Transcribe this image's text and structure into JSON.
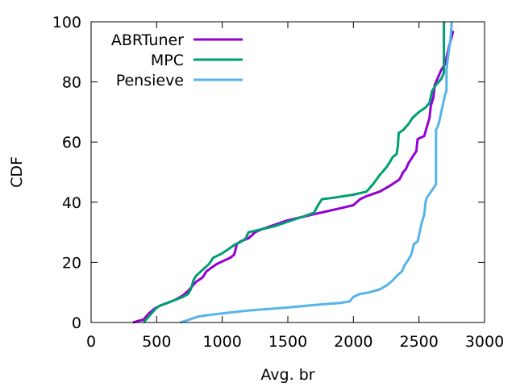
{
  "chart_data": {
    "type": "line",
    "xlabel": "Avg. br",
    "ylabel": "CDF",
    "xlim": [
      0,
      3000
    ],
    "ylim": [
      0,
      100
    ],
    "xticks": [
      0,
      500,
      1000,
      1500,
      2000,
      2500,
      3000
    ],
    "yticks": [
      0,
      20,
      40,
      60,
      80,
      100
    ],
    "legend_position": "top-left",
    "series": [
      {
        "name": "ABRTuner",
        "color": "#9400d3",
        "points": [
          [
            320,
            0
          ],
          [
            360,
            0.5
          ],
          [
            400,
            1
          ],
          [
            420,
            2
          ],
          [
            440,
            3
          ],
          [
            480,
            4.5
          ],
          [
            520,
            5.5
          ],
          [
            580,
            6.5
          ],
          [
            640,
            7.5
          ],
          [
            700,
            9
          ],
          [
            740,
            10.5
          ],
          [
            770,
            12
          ],
          [
            800,
            13.5
          ],
          [
            850,
            15
          ],
          [
            880,
            17
          ],
          [
            910,
            18
          ],
          [
            960,
            19.5
          ],
          [
            1010,
            20.5
          ],
          [
            1060,
            21.5
          ],
          [
            1090,
            22.5
          ],
          [
            1100,
            24
          ],
          [
            1110,
            26
          ],
          [
            1140,
            27
          ],
          [
            1200,
            28
          ],
          [
            1250,
            30
          ],
          [
            1300,
            31
          ],
          [
            1400,
            32.5
          ],
          [
            1500,
            34
          ],
          [
            1600,
            35
          ],
          [
            1700,
            36
          ],
          [
            1800,
            37
          ],
          [
            1900,
            38
          ],
          [
            2000,
            39
          ],
          [
            2050,
            41
          ],
          [
            2100,
            42
          ],
          [
            2200,
            43.5
          ],
          [
            2280,
            45.5
          ],
          [
            2350,
            47.5
          ],
          [
            2380,
            50
          ],
          [
            2400,
            51
          ],
          [
            2420,
            53
          ],
          [
            2450,
            55
          ],
          [
            2480,
            57
          ],
          [
            2490,
            61
          ],
          [
            2540,
            62
          ],
          [
            2560,
            65
          ],
          [
            2580,
            68
          ],
          [
            2590,
            72
          ],
          [
            2610,
            75
          ],
          [
            2620,
            79
          ],
          [
            2650,
            82
          ],
          [
            2670,
            84
          ],
          [
            2700,
            86
          ],
          [
            2710,
            88
          ],
          [
            2720,
            90
          ],
          [
            2730,
            92
          ],
          [
            2750,
            95
          ],
          [
            2760,
            97
          ]
        ]
      },
      {
        "name": "MPC",
        "color": "#009e73",
        "points": [
          [
            400,
            0
          ],
          [
            420,
            1
          ],
          [
            440,
            2
          ],
          [
            460,
            3
          ],
          [
            490,
            4.5
          ],
          [
            520,
            5.5
          ],
          [
            580,
            6.5
          ],
          [
            640,
            7.5
          ],
          [
            700,
            8.5
          ],
          [
            740,
            9.5
          ],
          [
            760,
            11
          ],
          [
            770,
            12.5
          ],
          [
            780,
            14
          ],
          [
            800,
            15.5
          ],
          [
            850,
            17.5
          ],
          [
            900,
            19.5
          ],
          [
            930,
            21.5
          ],
          [
            1000,
            23
          ],
          [
            1050,
            24.5
          ],
          [
            1100,
            26
          ],
          [
            1150,
            27
          ],
          [
            1180,
            28
          ],
          [
            1200,
            30
          ],
          [
            1300,
            31
          ],
          [
            1400,
            32
          ],
          [
            1500,
            33.5
          ],
          [
            1600,
            35
          ],
          [
            1700,
            36.5
          ],
          [
            1730,
            39
          ],
          [
            1760,
            41
          ],
          [
            1850,
            41.5
          ],
          [
            2000,
            42.5
          ],
          [
            2100,
            43.5
          ],
          [
            2150,
            46
          ],
          [
            2200,
            49
          ],
          [
            2250,
            51.5
          ],
          [
            2280,
            53.5
          ],
          [
            2300,
            55
          ],
          [
            2330,
            56
          ],
          [
            2340,
            59
          ],
          [
            2345,
            63
          ],
          [
            2380,
            64
          ],
          [
            2420,
            66
          ],
          [
            2450,
            68
          ],
          [
            2500,
            70
          ],
          [
            2550,
            71.5
          ],
          [
            2580,
            73
          ],
          [
            2590,
            75
          ],
          [
            2600,
            77
          ],
          [
            2630,
            79
          ],
          [
            2650,
            80
          ],
          [
            2670,
            81
          ],
          [
            2690,
            83
          ],
          [
            2690,
            100
          ]
        ]
      },
      {
        "name": "Pensieve",
        "color": "#56b4e9",
        "points": [
          [
            680,
            0
          ],
          [
            750,
            1
          ],
          [
            820,
            2
          ],
          [
            900,
            2.5
          ],
          [
            1000,
            3
          ],
          [
            1100,
            3.5
          ],
          [
            1200,
            4
          ],
          [
            1500,
            5
          ],
          [
            1750,
            6
          ],
          [
            1900,
            6.5
          ],
          [
            1970,
            7
          ],
          [
            2000,
            8.5
          ],
          [
            2050,
            9.5
          ],
          [
            2120,
            10
          ],
          [
            2200,
            11
          ],
          [
            2260,
            12.5
          ],
          [
            2300,
            14
          ],
          [
            2330,
            15.5
          ],
          [
            2370,
            17
          ],
          [
            2390,
            19
          ],
          [
            2420,
            21
          ],
          [
            2440,
            22.5
          ],
          [
            2450,
            24
          ],
          [
            2460,
            26
          ],
          [
            2490,
            27
          ],
          [
            2500,
            29
          ],
          [
            2520,
            33
          ],
          [
            2540,
            36
          ],
          [
            2550,
            40
          ],
          [
            2560,
            41.5
          ],
          [
            2600,
            44
          ],
          [
            2630,
            46
          ],
          [
            2630,
            64
          ],
          [
            2650,
            66
          ],
          [
            2660,
            68
          ],
          [
            2670,
            70
          ],
          [
            2680,
            72
          ],
          [
            2700,
            76
          ],
          [
            2710,
            77
          ],
          [
            2710,
            84
          ],
          [
            2720,
            88
          ],
          [
            2740,
            94
          ],
          [
            2750,
            100
          ]
        ]
      }
    ]
  }
}
